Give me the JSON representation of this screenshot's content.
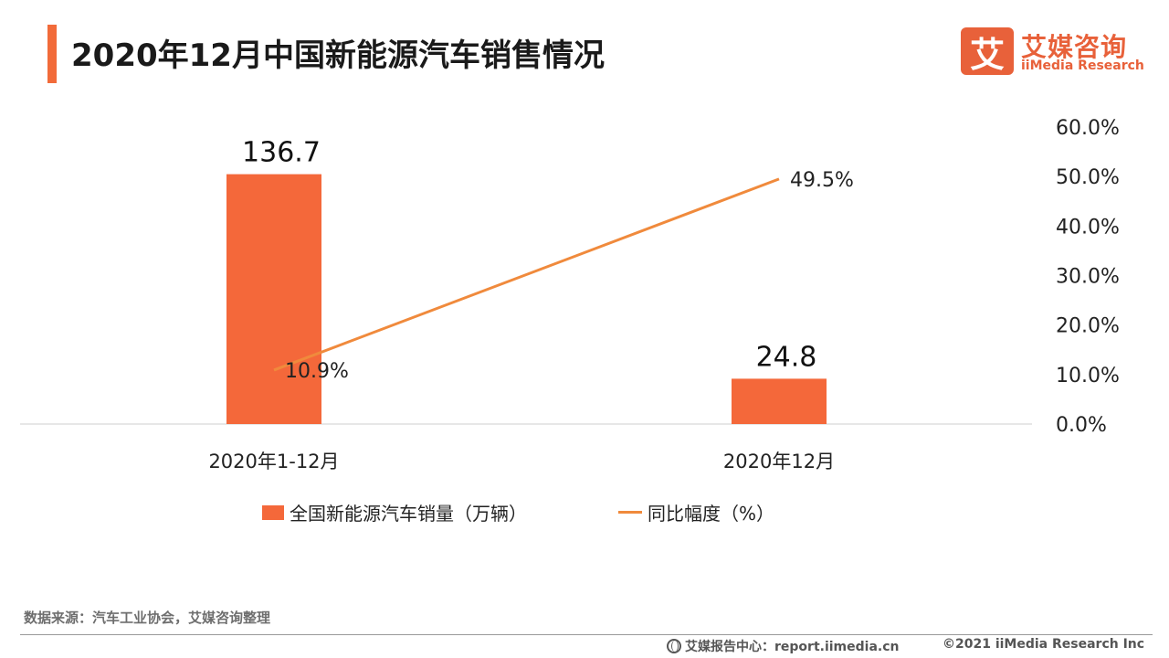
{
  "header": {
    "title": "2020年12月中国新能源汽车销售情况"
  },
  "logo": {
    "mark": "艾",
    "name_cn": "艾媒咨询",
    "name_en": "iiMedia Research"
  },
  "chart_data": {
    "type": "bar",
    "categories": [
      "2020年1-12月",
      "2020年12月"
    ],
    "series": [
      {
        "name": "全国新能源汽车销量（万辆）",
        "kind": "bar",
        "axis": "left",
        "values": [
          136.7,
          24.8
        ],
        "labels": [
          "136.7",
          "24.8"
        ],
        "color": "#f4683a"
      },
      {
        "name": "同比幅度（%）",
        "kind": "line",
        "axis": "right",
        "values": [
          10.9,
          49.5
        ],
        "labels": [
          "10.9%",
          "49.5%"
        ],
        "color": "#f08a3c"
      }
    ],
    "y_left_lim": [
      0,
      160
    ],
    "y_right_lim": [
      0,
      60
    ],
    "y_right_ticks": [
      "0.0%",
      "10.0%",
      "20.0%",
      "30.0%",
      "40.0%",
      "50.0%",
      "60.0%"
    ],
    "legend_position": "bottom",
    "grid": false
  },
  "legend": {
    "bar_label": "全国新能源汽车销量（万辆）",
    "line_label": "同比幅度（%）"
  },
  "source": "数据来源：汽车工业协会，艾媒咨询整理",
  "footer": {
    "center_label": "艾媒报告中心：report.iimedia.cn",
    "copyright": "©2021  iiMedia Research  Inc"
  },
  "colors": {
    "accent": "#f26b3a",
    "bar": "#f4683a",
    "line": "#f08a3c"
  }
}
